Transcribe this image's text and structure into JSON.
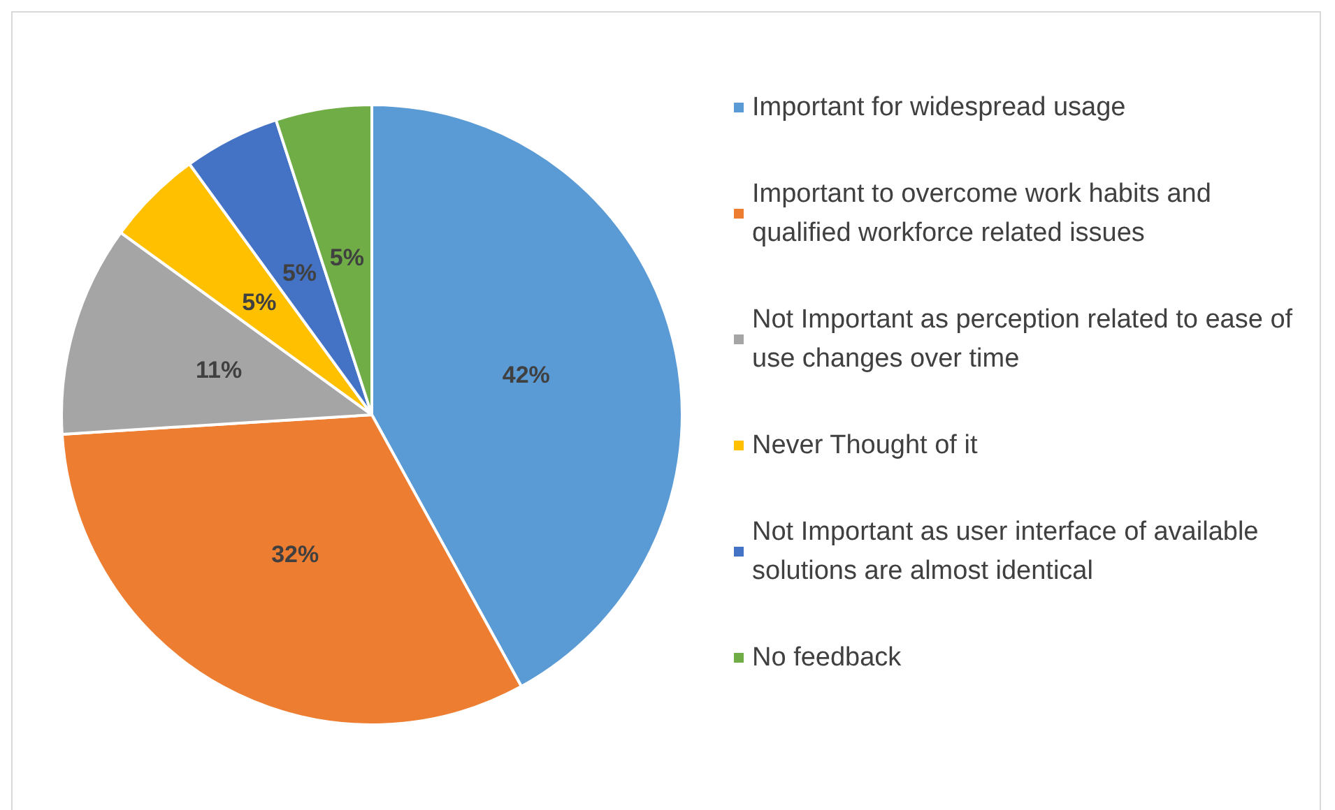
{
  "chart_data": {
    "type": "pie",
    "categories": [
      "Important for widespread usage",
      "Important to overcome work habits and qualified workforce related issues",
      "Not Important as perception related to ease of use changes over time",
      "Never Thought of it",
      "Not Important as user interface of available solutions are almost identical",
      "No feedback"
    ],
    "values": [
      42,
      32,
      11,
      5,
      5,
      5
    ],
    "value_labels": [
      "42%",
      "32%",
      "11%",
      "5%",
      "5%",
      "5%"
    ],
    "colors": [
      "#5b9bd5",
      "#ed7d31",
      "#a5a5a5",
      "#ffc000",
      "#4472c4",
      "#70ad47"
    ],
    "legend": "right"
  }
}
